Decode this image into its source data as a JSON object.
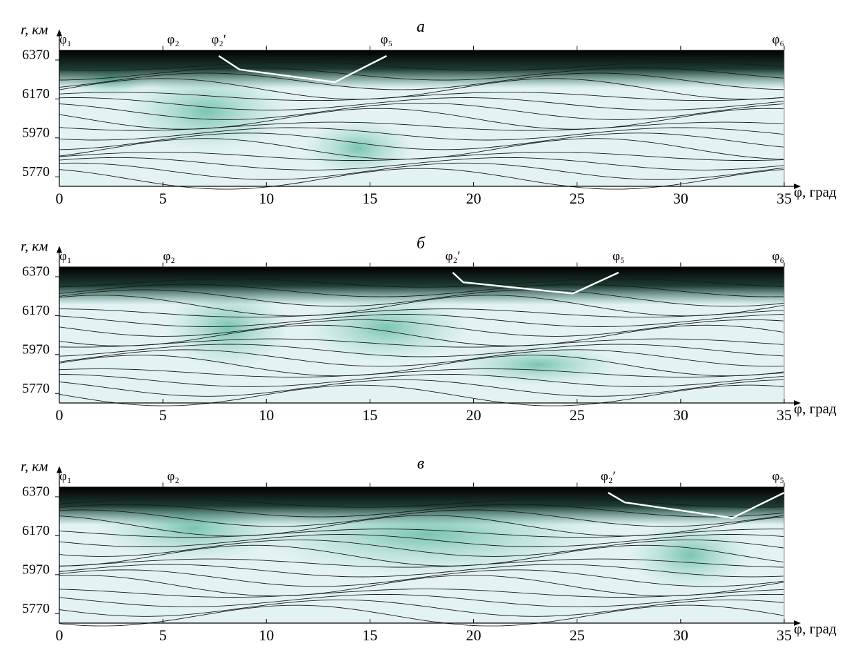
{
  "chart_data": [
    {
      "type": "contour",
      "title": "а",
      "ylabel": "r, км",
      "xlabel": "φ, град",
      "xlim": [
        0,
        35
      ],
      "xticks": [
        0,
        5,
        10,
        15,
        20,
        25,
        30,
        35
      ],
      "ylim": [
        5700,
        6400
      ],
      "yticks": [
        6370,
        6170,
        5970,
        5770
      ],
      "annotations": [
        {
          "text": "φ₁",
          "x": 0
        },
        {
          "text": "φ₂",
          "x": 5.5
        },
        {
          "text": "φ₂′",
          "x": 7.7
        },
        {
          "text": "φ₅",
          "x": 15.8
        },
        {
          "text": "φ₆",
          "x": 35
        }
      ],
      "boundary": {
        "color": "#ffffff",
        "x": [
          7.7,
          8.7,
          13.3,
          15.8
        ],
        "y": [
          6370,
          6300,
          6235,
          6370
        ]
      }
    },
    {
      "type": "contour",
      "title": "б",
      "ylabel": "r, км",
      "xlabel": "φ, град",
      "xlim": [
        0,
        35
      ],
      "xticks": [
        0,
        5,
        10,
        15,
        20,
        25,
        30,
        35
      ],
      "ylim": [
        5700,
        6400
      ],
      "yticks": [
        6370,
        6170,
        5970,
        5770
      ],
      "annotations": [
        {
          "text": "φ₁",
          "x": 0
        },
        {
          "text": "φ₂",
          "x": 5.3
        },
        {
          "text": "φ₂′",
          "x": 19.0
        },
        {
          "text": "φ₅",
          "x": 27.0
        },
        {
          "text": "φ₆",
          "x": 35
        }
      ],
      "boundary": {
        "color": "#ffffff",
        "x": [
          19.0,
          19.5,
          24.8,
          27.0
        ],
        "y": [
          6370,
          6320,
          6262,
          6370
        ]
      }
    },
    {
      "type": "contour",
      "title": "в",
      "ylabel": "r, км",
      "xlabel": "φ, град",
      "xlim": [
        0,
        35
      ],
      "xticks": [
        0,
        5,
        10,
        15,
        20,
        25,
        30,
        35
      ],
      "ylim": [
        5700,
        6400
      ],
      "yticks": [
        6370,
        6170,
        5970,
        5770
      ],
      "annotations": [
        {
          "text": "φ₁",
          "x": 0
        },
        {
          "text": "φ₂",
          "x": 5.5
        },
        {
          "text": "φ₂′",
          "x": 26.5
        },
        {
          "text": "φ₅",
          "x": 35
        }
      ],
      "boundary": {
        "color": "#ffffff",
        "x": [
          26.5,
          27.3,
          32.5,
          35
        ],
        "y": [
          6370,
          6320,
          6240,
          6370
        ]
      }
    }
  ]
}
